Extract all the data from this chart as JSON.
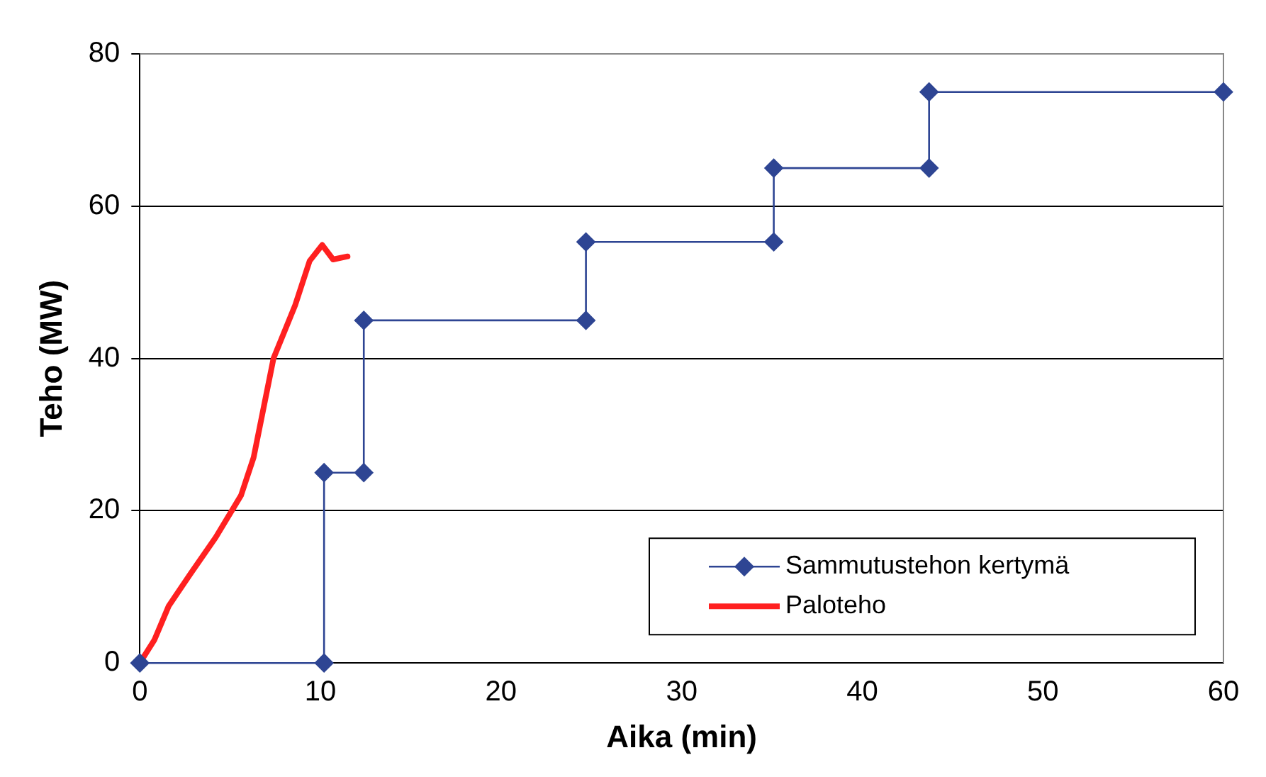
{
  "chart_data": {
    "type": "line",
    "xlabel": "Aika (min)",
    "ylabel": "Teho (MW)",
    "xlim": [
      0,
      60
    ],
    "xticks": [
      0,
      10,
      20,
      30,
      40,
      50,
      60
    ],
    "ylim": [
      0,
      80
    ],
    "yticks": [
      0,
      20,
      40,
      60,
      80
    ],
    "grid": "y",
    "legend": "bottom right",
    "series": [
      {
        "name": "Sammutustehon kertymä",
        "color": "#2e4593",
        "marker": "diamond",
        "x": [
          0,
          10.2,
          10.2,
          12.4,
          12.4,
          24.7,
          24.7,
          35.1,
          35.1,
          43.7,
          43.7,
          60
        ],
        "values": [
          0,
          0,
          25,
          25,
          45,
          45,
          55.3,
          55.3,
          65,
          65,
          75,
          75
        ]
      },
      {
        "name": "Paloteho",
        "color": "#ff2020",
        "marker": "none",
        "x": [
          0,
          0.8,
          1.6,
          2.8,
          4.2,
          5.6,
          6.3,
          7.4,
          8.6,
          9.4,
          10.1,
          10.7,
          11.5
        ],
        "values": [
          0,
          3,
          7.5,
          11.7,
          16.5,
          22,
          27,
          40,
          47,
          52.8,
          54.9,
          53,
          53.4
        ]
      }
    ]
  }
}
